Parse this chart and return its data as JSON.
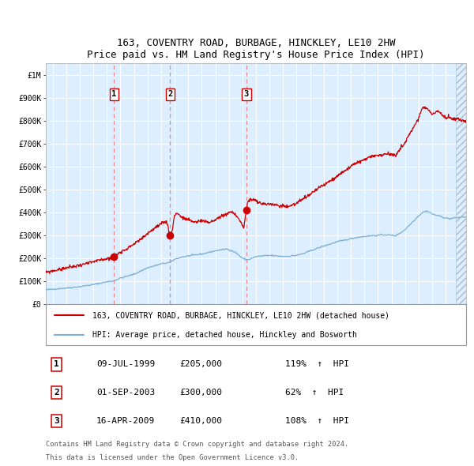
{
  "title": "163, COVENTRY ROAD, BURBAGE, HINCKLEY, LE10 2HW",
  "subtitle": "Price paid vs. HM Land Registry's House Price Index (HPI)",
  "legend_line1": "163, COVENTRY ROAD, BURBAGE, HINCKLEY, LE10 2HW (detached house)",
  "legend_line2": "HPI: Average price, detached house, Hinckley and Bosworth",
  "footer1": "Contains HM Land Registry data © Crown copyright and database right 2024.",
  "footer2": "This data is licensed under the Open Government Licence v3.0.",
  "sales": [
    {
      "num": 1,
      "date": "09-JUL-1999",
      "price": 205000,
      "pct": "119%",
      "dir": "↑"
    },
    {
      "num": 2,
      "date": "01-SEP-2003",
      "price": 300000,
      "pct": "62%",
      "dir": "↑"
    },
    {
      "num": 3,
      "date": "16-APR-2009",
      "price": 410000,
      "pct": "108%",
      "dir": "↑"
    }
  ],
  "sale_dates_decimal": [
    1999.53,
    2003.67,
    2009.29
  ],
  "sale_prices": [
    205000,
    300000,
    410000
  ],
  "red_color": "#cc0000",
  "blue_color": "#7bafd4",
  "plot_bg": "#ddeeff",
  "vline_color": "#ee8888",
  "ylim": [
    0,
    1050000
  ],
  "yticks": [
    0,
    100000,
    200000,
    300000,
    400000,
    500000,
    600000,
    700000,
    800000,
    900000,
    1000000
  ],
  "xlim_start": 1994.5,
  "xlim_end": 2025.5,
  "hatch_start": 2024.75
}
